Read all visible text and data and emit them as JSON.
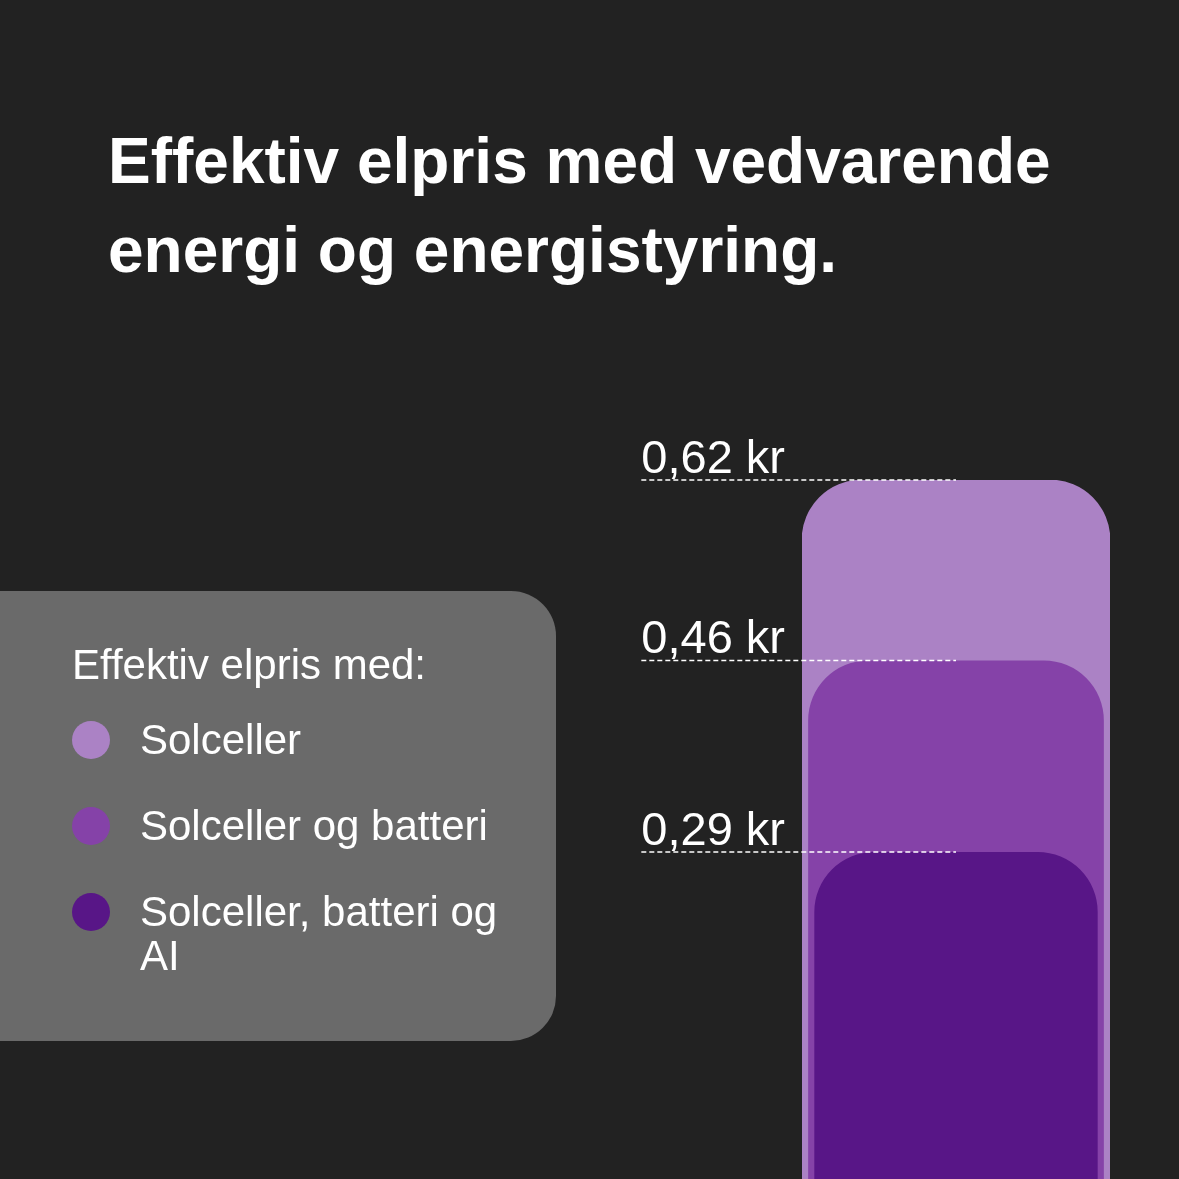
{
  "chart_data": {
    "type": "bar",
    "title": "Effektiv elpris med vedvarende energi og energistyring.",
    "legend_title": "Effektiv elpris med:",
    "legend": "left",
    "categories": [
      null
    ],
    "tick_labels": false,
    "series": [
      {
        "name": "Solceller",
        "color": "#ab82c5",
        "values": [
          0.62
        ],
        "value_labels": [
          "0,62 kr"
        ]
      },
      {
        "name": "Solceller og batteri",
        "color": "#8542a8",
        "values": [
          0.46
        ],
        "value_labels": [
          "0,46 kr"
        ]
      },
      {
        "name": "Solceller, batteri og AI",
        "color": "#581687",
        "values": [
          0.29
        ],
        "value_labels": [
          "0,29 kr"
        ]
      }
    ]
  }
}
